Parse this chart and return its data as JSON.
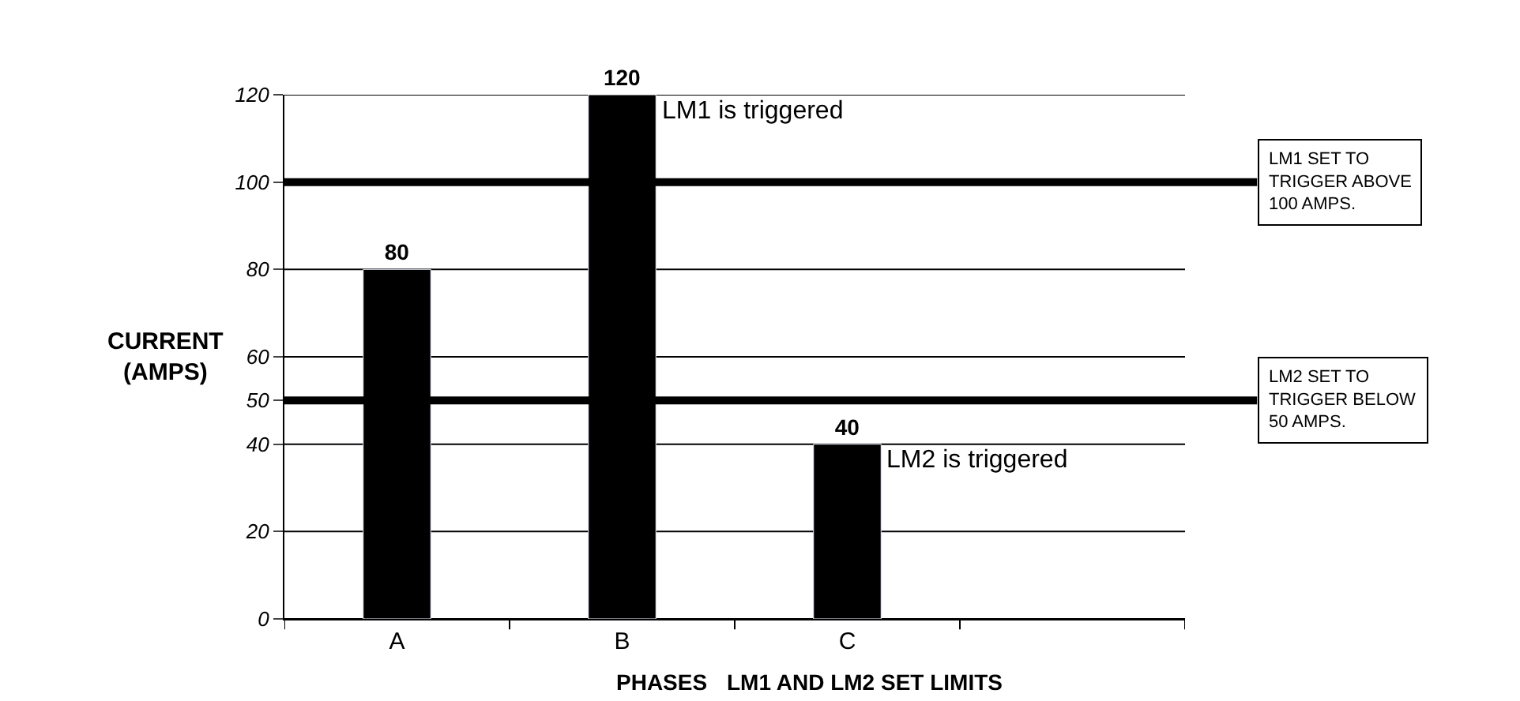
{
  "chart_data": {
    "type": "bar",
    "categories": [
      "A",
      "B",
      "C",
      null
    ],
    "values": [
      80,
      120,
      40,
      null
    ],
    "color": "#000000",
    "xlabel": "PHASES",
    "ylabel": "CURRENT\n(AMPS)",
    "ylim": [
      0,
      120
    ],
    "yticks": [
      0,
      20,
      40,
      50,
      60,
      80,
      100,
      120
    ],
    "grid": "y",
    "data_labels": true,
    "value_labels": [
      "80",
      "120",
      "40",
      null
    ],
    "ref_lines": [
      {
        "axis": "y",
        "value": 100,
        "label": "LM1 SET TO\nTRIGGER ABOVE\n100 AMPS.",
        "color": "#000000"
      },
      {
        "axis": "y",
        "value": 50,
        "label": "LM2 SET TO\nTRIGGER BELOW\n50 AMPS.",
        "color": "#000000"
      }
    ],
    "annotations": [
      {
        "text": "LM1 is triggered",
        "x": "B",
        "y": 120
      },
      {
        "text": "LM2 is triggered",
        "x": "C",
        "y": 40
      },
      "LM1 AND LM2 SET LIMITS"
    ]
  }
}
